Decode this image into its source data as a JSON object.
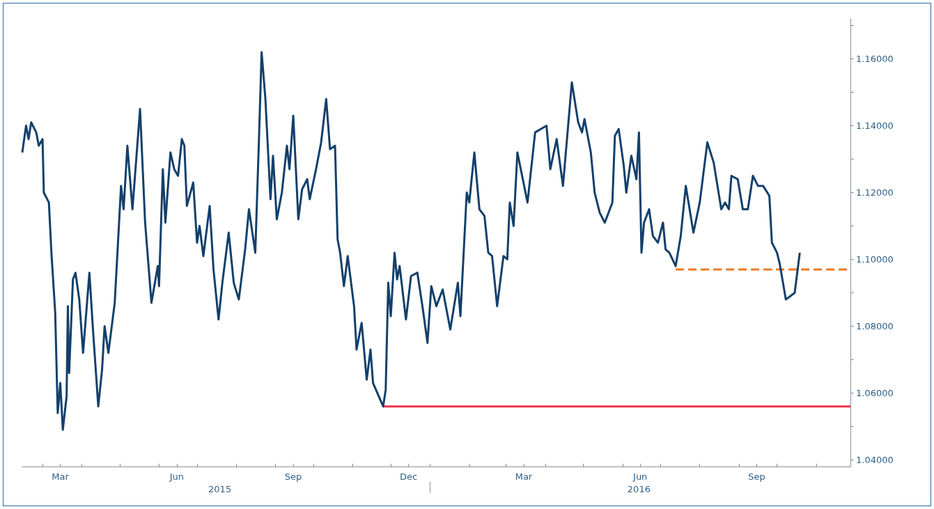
{
  "chart_data": {
    "type": "line",
    "marker": "none",
    "x": [
      "2015-02-13",
      "2015-02-16",
      "2015-02-18",
      "2015-02-20",
      "2015-02-24",
      "2015-02-26",
      "2015-03-01",
      "2015-03-02",
      "2015-03-06",
      "2015-03-08",
      "2015-03-11",
      "2015-03-13",
      "2015-03-15",
      "2015-03-17",
      "2015-03-20",
      "2015-03-21",
      "2015-03-22",
      "2015-03-25",
      "2015-03-27",
      "2015-03-30",
      "2015-04-02",
      "2015-04-07",
      "2015-04-10",
      "2015-04-14",
      "2015-04-17",
      "2015-04-19",
      "2015-04-22",
      "2015-04-27",
      "2015-05-02",
      "2015-05-04",
      "2015-05-07",
      "2015-05-11",
      "2015-05-17",
      "2015-05-21",
      "2015-05-26",
      "2015-05-31",
      "2015-06-01",
      "2015-06-04",
      "2015-06-06",
      "2015-06-10",
      "2015-06-13",
      "2015-06-16",
      "2015-06-19",
      "2015-06-21",
      "2015-06-23",
      "2015-06-28",
      "2015-07-01",
      "2015-07-03",
      "2015-07-06",
      "2015-07-11",
      "2015-07-14",
      "2015-07-18",
      "2015-07-21",
      "2015-07-26",
      "2015-07-30",
      "2015-08-03",
      "2015-08-08",
      "2015-08-11",
      "2015-08-16",
      "2015-08-19",
      "2015-08-21",
      "2015-08-24",
      "2015-08-28",
      "2015-08-30",
      "2015-09-02",
      "2015-09-06",
      "2015-09-10",
      "2015-09-12",
      "2015-09-15",
      "2015-09-19",
      "2015-09-22",
      "2015-09-26",
      "2015-09-28",
      "2015-10-03",
      "2015-10-07",
      "2015-10-11",
      "2015-10-14",
      "2015-10-18",
      "2015-10-20",
      "2015-10-22",
      "2015-10-25",
      "2015-10-28",
      "2015-11-02",
      "2015-11-04",
      "2015-11-08",
      "2015-11-12",
      "2015-11-15",
      "2015-11-17",
      "2015-11-25",
      "2015-11-27",
      "2015-11-29",
      "2015-12-01",
      "2015-12-04",
      "2015-12-06",
      "2015-12-08",
      "2015-12-13",
      "2015-12-17",
      "2015-12-22",
      "2015-12-26",
      "2015-12-30",
      "2016-01-02",
      "2016-01-06",
      "2016-01-11",
      "2016-01-17",
      "2016-01-23",
      "2016-01-25",
      "2016-01-30",
      "2016-02-01",
      "2016-02-05",
      "2016-02-09",
      "2016-02-13",
      "2016-02-16",
      "2016-02-19",
      "2016-02-23",
      "2016-02-28",
      "2016-03-02",
      "2016-03-04",
      "2016-03-07",
      "2016-03-10",
      "2016-03-18",
      "2016-03-24",
      "2016-04-02",
      "2016-04-05",
      "2016-04-10",
      "2016-04-15",
      "2016-04-22",
      "2016-04-27",
      "2016-04-30",
      "2016-05-02",
      "2016-05-07",
      "2016-05-10",
      "2016-05-14",
      "2016-05-18",
      "2016-05-24",
      "2016-05-26",
      "2016-05-29",
      "2016-06-02",
      "2016-06-04",
      "2016-06-08",
      "2016-06-12",
      "2016-06-14",
      "2016-06-16",
      "2016-06-18",
      "2016-06-22",
      "2016-06-25",
      "2016-06-29",
      "2016-07-03",
      "2016-07-05",
      "2016-07-08",
      "2016-07-13",
      "2016-07-17",
      "2016-07-21",
      "2016-07-27",
      "2016-08-01",
      "2016-08-07",
      "2016-08-12",
      "2016-08-18",
      "2016-08-21",
      "2016-08-24",
      "2016-08-26",
      "2016-08-31",
      "2016-09-04",
      "2016-09-08",
      "2016-09-12",
      "2016-09-16",
      "2016-09-20",
      "2016-09-25",
      "2016-09-27",
      "2016-10-01",
      "2016-10-03",
      "2016-10-08",
      "2016-10-15",
      "2016-10-19"
    ],
    "series": [
      {
        "color": "#13406b",
        "values": [
          1.132,
          1.14,
          1.136,
          1.141,
          1.138,
          1.134,
          1.136,
          1.12,
          1.117,
          1.102,
          1.084,
          1.054,
          1.063,
          1.049,
          1.059,
          1.086,
          1.066,
          1.094,
          1.096,
          1.088,
          1.072,
          1.096,
          1.078,
          1.056,
          1.067,
          1.08,
          1.072,
          1.087,
          1.122,
          1.115,
          1.134,
          1.115,
          1.145,
          1.111,
          1.087,
          1.098,
          1.092,
          1.127,
          1.111,
          1.132,
          1.127,
          1.125,
          1.136,
          1.134,
          1.116,
          1.123,
          1.105,
          1.11,
          1.101,
          1.116,
          1.097,
          1.082,
          1.093,
          1.108,
          1.093,
          1.088,
          1.103,
          1.115,
          1.102,
          1.137,
          1.162,
          1.148,
          1.118,
          1.131,
          1.112,
          1.12,
          1.134,
          1.127,
          1.143,
          1.112,
          1.121,
          1.124,
          1.118,
          1.127,
          1.135,
          1.148,
          1.133,
          1.134,
          1.106,
          1.102,
          1.092,
          1.101,
          1.086,
          1.073,
          1.081,
          1.064,
          1.073,
          1.063,
          1.056,
          1.061,
          1.093,
          1.083,
          1.102,
          1.094,
          1.098,
          1.082,
          1.095,
          1.096,
          1.086,
          1.075,
          1.092,
          1.086,
          1.091,
          1.079,
          1.093,
          1.083,
          1.12,
          1.117,
          1.132,
          1.115,
          1.113,
          1.102,
          1.101,
          1.086,
          1.101,
          1.1,
          1.117,
          1.11,
          1.132,
          1.117,
          1.138,
          1.14,
          1.127,
          1.136,
          1.122,
          1.153,
          1.141,
          1.138,
          1.142,
          1.132,
          1.12,
          1.114,
          1.111,
          1.117,
          1.137,
          1.139,
          1.128,
          1.12,
          1.131,
          1.124,
          1.138,
          1.102,
          1.111,
          1.115,
          1.107,
          1.105,
          1.111,
          1.103,
          1.102,
          1.098,
          1.107,
          1.122,
          1.108,
          1.117,
          1.135,
          1.129,
          1.115,
          1.117,
          1.115,
          1.125,
          1.124,
          1.115,
          1.115,
          1.125,
          1.122,
          1.122,
          1.119,
          1.105,
          1.102,
          1.099,
          1.088,
          1.09,
          1.102
        ]
      },
      {
        "color": "#f0334a",
        "line_style": "solid",
        "x": [
          "2015-11-25",
          "2016-11-28"
        ],
        "values": [
          1.056,
          1.056
        ]
      },
      {
        "color": "#f07820",
        "line_style": "dashed",
        "x": [
          "2016-07-13",
          "2016-11-28"
        ],
        "values": [
          1.097,
          1.097
        ]
      }
    ],
    "xlim": [
      "2015-02-13",
      "2016-11-28"
    ],
    "xticks": [
      {
        "value": "2015-03-01",
        "label": null
      },
      {
        "value": "2015-03-15",
        "label": "Mar"
      },
      {
        "value": "2015-04-01",
        "label": null
      },
      {
        "value": "2015-05-01",
        "label": null
      },
      {
        "value": "2015-06-01",
        "label": null
      },
      {
        "value": "2015-06-15",
        "label": "Jun"
      },
      {
        "value": "2015-07-01",
        "label": null
      },
      {
        "value": "2015-08-01",
        "label": null
      },
      {
        "value": "2015-09-01",
        "label": null
      },
      {
        "value": "2015-09-15",
        "label": "Sep"
      },
      {
        "value": "2015-10-01",
        "label": null
      },
      {
        "value": "2015-11-01",
        "label": null
      },
      {
        "value": "2015-12-01",
        "label": null
      },
      {
        "value": "2015-12-15",
        "label": "Dec"
      },
      {
        "value": "2016-01-01",
        "label": null
      },
      {
        "value": "2016-02-01",
        "label": null
      },
      {
        "value": "2016-03-01",
        "label": null
      },
      {
        "value": "2016-03-15",
        "label": "Mar"
      },
      {
        "value": "2016-04-01",
        "label": null
      },
      {
        "value": "2016-05-01",
        "label": null
      },
      {
        "value": "2016-06-01",
        "label": null
      },
      {
        "value": "2016-06-15",
        "label": "Jun"
      },
      {
        "value": "2016-07-01",
        "label": null
      },
      {
        "value": "2016-08-01",
        "label": null
      },
      {
        "value": "2016-09-01",
        "label": null
      },
      {
        "value": "2016-09-15",
        "label": "Sep"
      },
      {
        "value": "2016-10-01",
        "label": null
      },
      {
        "value": "2016-11-01",
        "label": null
      }
    ],
    "x2lim": [
      "2015-02-13",
      "2016-11-28"
    ],
    "x2ticks": [
      {
        "value": "2015-07-19",
        "label": "2015"
      },
      {
        "value": "2016-01-01",
        "label": null
      },
      {
        "value": "2016-06-14",
        "label": "2016"
      }
    ],
    "ylim": [
      1.038,
      1.172
    ],
    "yticks": [
      {
        "value": 1.04,
        "label": "1.04000"
      },
      {
        "value": 1.05,
        "label": null
      },
      {
        "value": 1.06,
        "label": "1.06000"
      },
      {
        "value": 1.07,
        "label": null
      },
      {
        "value": 1.08,
        "label": "1.08000"
      },
      {
        "value": 1.09,
        "label": null
      },
      {
        "value": 1.1,
        "label": "1.10000"
      },
      {
        "value": 1.11,
        "label": null
      },
      {
        "value": 1.12,
        "label": "1.12000"
      },
      {
        "value": 1.13,
        "label": null
      },
      {
        "value": 1.14,
        "label": "1.14000"
      },
      {
        "value": 1.15,
        "label": null
      },
      {
        "value": 1.16,
        "label": "1.16000"
      },
      {
        "value": 1.17,
        "label": null
      }
    ]
  }
}
